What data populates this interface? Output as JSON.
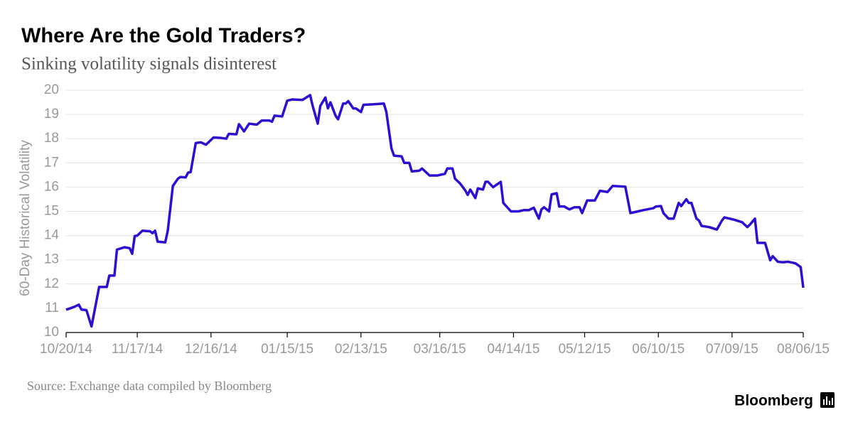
{
  "chart_data": {
    "type": "line",
    "title": "Where Are the Gold Traders?",
    "subtitle": "Sinking volatility signals disinterest",
    "y_label": "60-Day Historical Volatility",
    "source": "Source: Exchange data compiled by Bloomberg",
    "brand": "Bloomberg",
    "color": "#2b10d4",
    "grid": true,
    "xlim": [
      "2014-10-20",
      "2015-08-06"
    ],
    "xticks": [
      {
        "value": "2014-10-20",
        "label": "10/20/14"
      },
      {
        "value": "2014-11-17",
        "label": "11/17/14"
      },
      {
        "value": "2014-12-16",
        "label": "12/16/14"
      },
      {
        "value": "2015-01-15",
        "label": "01/15/15"
      },
      {
        "value": "2015-02-13",
        "label": "02/13/15"
      },
      {
        "value": "2015-03-16",
        "label": "03/16/15"
      },
      {
        "value": "2015-04-14",
        "label": "04/14/15"
      },
      {
        "value": "2015-05-12",
        "label": "05/12/15"
      },
      {
        "value": "2015-06-10",
        "label": "06/10/15"
      },
      {
        "value": "2015-07-09",
        "label": "07/09/15"
      },
      {
        "value": "2015-08-06",
        "label": "08/06/15"
      }
    ],
    "ylim": [
      10,
      20
    ],
    "yticks": [
      10,
      11,
      12,
      13,
      14,
      15,
      16,
      17,
      18,
      19,
      20
    ],
    "x": [
      "2014-10-20",
      "2014-10-23",
      "2014-10-25",
      "2014-10-26",
      "2014-10-28",
      "2014-10-30",
      "2014-11-02",
      "2014-11-05",
      "2014-11-06",
      "2014-11-08",
      "2014-11-09",
      "2014-11-12",
      "2014-11-14",
      "2014-11-15",
      "2014-11-16",
      "2014-11-17",
      "2014-11-19",
      "2014-11-22",
      "2014-11-23",
      "2014-11-24",
      "2014-11-25",
      "2014-11-28",
      "2014-11-29",
      "2014-12-01",
      "2014-12-03",
      "2014-12-04",
      "2014-12-06",
      "2014-12-07",
      "2014-12-08",
      "2014-12-10",
      "2014-12-12",
      "2014-12-14",
      "2014-12-17",
      "2014-12-20",
      "2014-12-22",
      "2014-12-23",
      "2014-12-26",
      "2014-12-27",
      "2014-12-29",
      "2014-12-31",
      "2015-01-03",
      "2015-01-05",
      "2015-01-08",
      "2015-01-09",
      "2015-01-10",
      "2015-01-13",
      "2015-01-15",
      "2015-01-17",
      "2015-01-21",
      "2015-01-24",
      "2015-01-25",
      "2015-01-27",
      "2015-01-28",
      "2015-01-30",
      "2015-01-31",
      "2015-02-01",
      "2015-02-03",
      "2015-02-04",
      "2015-02-06",
      "2015-02-07",
      "2015-02-08",
      "2015-02-10",
      "2015-02-11",
      "2015-02-13",
      "2015-02-14",
      "2015-02-18",
      "2015-02-22",
      "2015-02-23",
      "2015-02-25",
      "2015-02-26",
      "2015-03-01",
      "2015-03-02",
      "2015-03-04",
      "2015-03-05",
      "2015-03-08",
      "2015-03-09",
      "2015-03-12",
      "2015-03-15",
      "2015-03-18",
      "2015-03-19",
      "2015-03-21",
      "2015-03-22",
      "2015-03-24",
      "2015-03-26",
      "2015-03-27",
      "2015-03-28",
      "2015-03-30",
      "2015-03-31",
      "2015-04-02",
      "2015-04-03",
      "2015-04-04",
      "2015-04-06",
      "2015-04-09",
      "2015-04-10",
      "2015-04-13",
      "2015-04-16",
      "2015-04-18",
      "2015-04-20",
      "2015-04-22",
      "2015-04-24",
      "2015-04-25",
      "2015-04-26",
      "2015-04-28",
      "2015-04-29",
      "2015-05-01",
      "2015-05-02",
      "2015-05-04",
      "2015-05-06",
      "2015-05-08",
      "2015-05-10",
      "2015-05-11",
      "2015-05-13",
      "2015-05-16",
      "2015-05-18",
      "2015-05-21",
      "2015-05-23",
      "2015-05-28",
      "2015-05-30",
      "2015-06-02",
      "2015-06-04",
      "2015-06-08",
      "2015-06-09",
      "2015-06-11",
      "2015-06-12",
      "2015-06-14",
      "2015-06-16",
      "2015-06-18",
      "2015-06-19",
      "2015-06-21",
      "2015-06-22",
      "2015-06-23",
      "2015-06-25",
      "2015-06-26",
      "2015-06-27",
      "2015-06-30",
      "2015-07-03",
      "2015-07-05",
      "2015-07-06",
      "2015-07-08",
      "2015-07-10",
      "2015-07-13",
      "2015-07-15",
      "2015-07-16",
      "2015-07-18",
      "2015-07-19",
      "2015-07-22",
      "2015-07-24",
      "2015-07-25",
      "2015-07-27",
      "2015-07-29",
      "2015-07-31",
      "2015-08-02",
      "2015-08-03",
      "2015-08-05",
      "2015-08-06"
    ],
    "values": [
      10.94,
      11.05,
      11.15,
      10.95,
      10.92,
      10.25,
      11.88,
      11.88,
      12.35,
      12.35,
      13.42,
      13.52,
      13.48,
      13.25,
      13.98,
      14.0,
      14.2,
      14.18,
      14.1,
      14.2,
      13.75,
      13.72,
      14.2,
      16.05,
      16.35,
      16.42,
      16.4,
      16.6,
      16.62,
      17.82,
      17.85,
      17.75,
      18.05,
      18.03,
      18.0,
      18.2,
      18.18,
      18.6,
      18.3,
      18.62,
      18.58,
      18.75,
      18.75,
      18.7,
      18.95,
      18.92,
      19.57,
      19.62,
      19.6,
      19.8,
      19.35,
      18.62,
      19.35,
      19.7,
      19.25,
      19.5,
      18.95,
      18.8,
      19.45,
      19.45,
      19.55,
      19.25,
      19.25,
      19.1,
      19.4,
      19.42,
      19.45,
      19.1,
      17.6,
      17.3,
      17.27,
      17.0,
      17.0,
      16.65,
      16.68,
      16.77,
      16.48,
      16.48,
      16.55,
      16.77,
      16.77,
      16.35,
      16.15,
      15.87,
      15.68,
      15.9,
      15.55,
      15.95,
      15.9,
      16.22,
      16.22,
      16.0,
      16.22,
      15.35,
      15.0,
      15.0,
      15.05,
      15.05,
      15.15,
      14.7,
      15.08,
      15.17,
      15.0,
      15.7,
      15.75,
      15.2,
      15.2,
      15.08,
      15.17,
      15.17,
      14.93,
      15.45,
      15.45,
      15.85,
      15.8,
      16.05,
      16.02,
      14.93,
      15.0,
      15.05,
      15.13,
      15.2,
      15.22,
      14.93,
      14.7,
      14.7,
      15.35,
      15.22,
      15.5,
      15.35,
      15.35,
      14.7,
      14.62,
      14.4,
      14.35,
      14.25,
      14.62,
      14.75,
      14.7,
      14.65,
      14.55,
      14.35,
      14.45,
      14.7,
      13.7,
      13.7,
      12.98,
      13.15,
      12.92,
      12.9,
      12.92,
      12.88,
      12.85,
      12.7,
      11.85
    ]
  }
}
